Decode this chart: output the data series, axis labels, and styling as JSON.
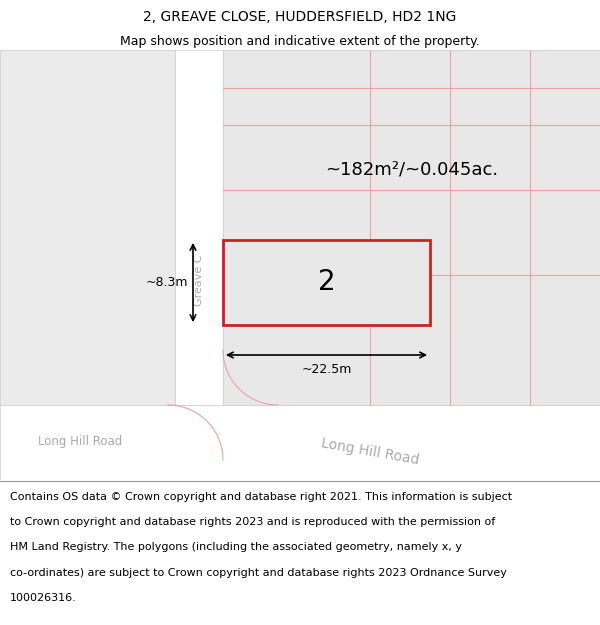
{
  "title": "2, GREAVE CLOSE, HUDDERSFIELD, HD2 1NG",
  "subtitle": "Map shows position and indicative extent of the property.",
  "footer_line1": "Contains OS data © Crown copyright and database right 2021. This information is subject",
  "footer_line2": "to Crown copyright and database rights 2023 and is reproduced with the permission of",
  "footer_line3": "HM Land Registry. The polygons (including the associated geometry, namely x, y",
  "footer_line4": "co-ordinates) are subject to Crown copyright and database rights 2023 Ordnance Survey",
  "footer_line5": "100026316.",
  "area_text": "~182m²/~0.045ac.",
  "plot_number": "2",
  "width_label": "~22.5m",
  "height_label": "~8.3m",
  "road_label_left": "Long Hill Road",
  "road_label_right": "Long Hill Road",
  "street_label": "Greave C",
  "footer_fontsize": 8.0,
  "title_fontsize": 10,
  "subtitle_fontsize": 9,
  "map_bg": "#f0f0f0",
  "light_gray": "#e8e8e8",
  "lighter_gray": "#ebebeb",
  "white": "#ffffff",
  "pink_line": "#f0a0a0",
  "red_rect": "#cc2222",
  "dark_border": "#cccccc"
}
